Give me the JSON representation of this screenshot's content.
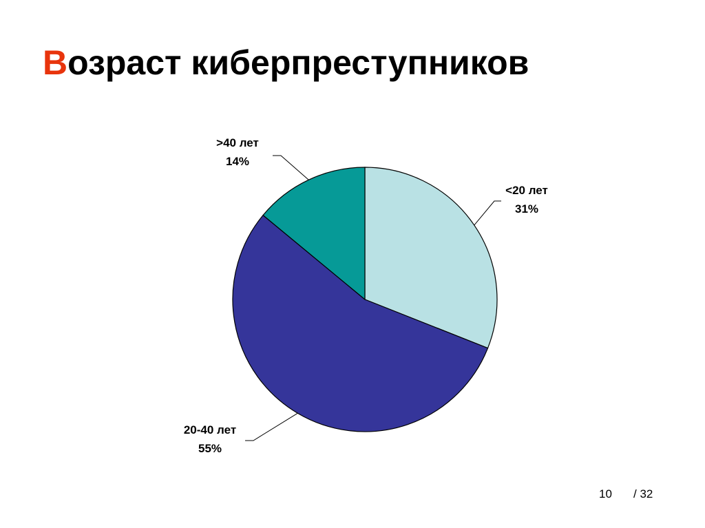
{
  "chart_data": {
    "type": "pie",
    "title": "Возраст киберпреступников",
    "categories": [
      "<20 лет",
      "20-40 лет",
      ">40 лет"
    ],
    "values": [
      31,
      55,
      14
    ],
    "value_labels": [
      "31%",
      "55%",
      "14%"
    ],
    "colors": [
      "#b9e1e4",
      "#35359a",
      "#069a97"
    ]
  },
  "footer": {
    "page_number": "10",
    "page_total": "/ 32"
  }
}
